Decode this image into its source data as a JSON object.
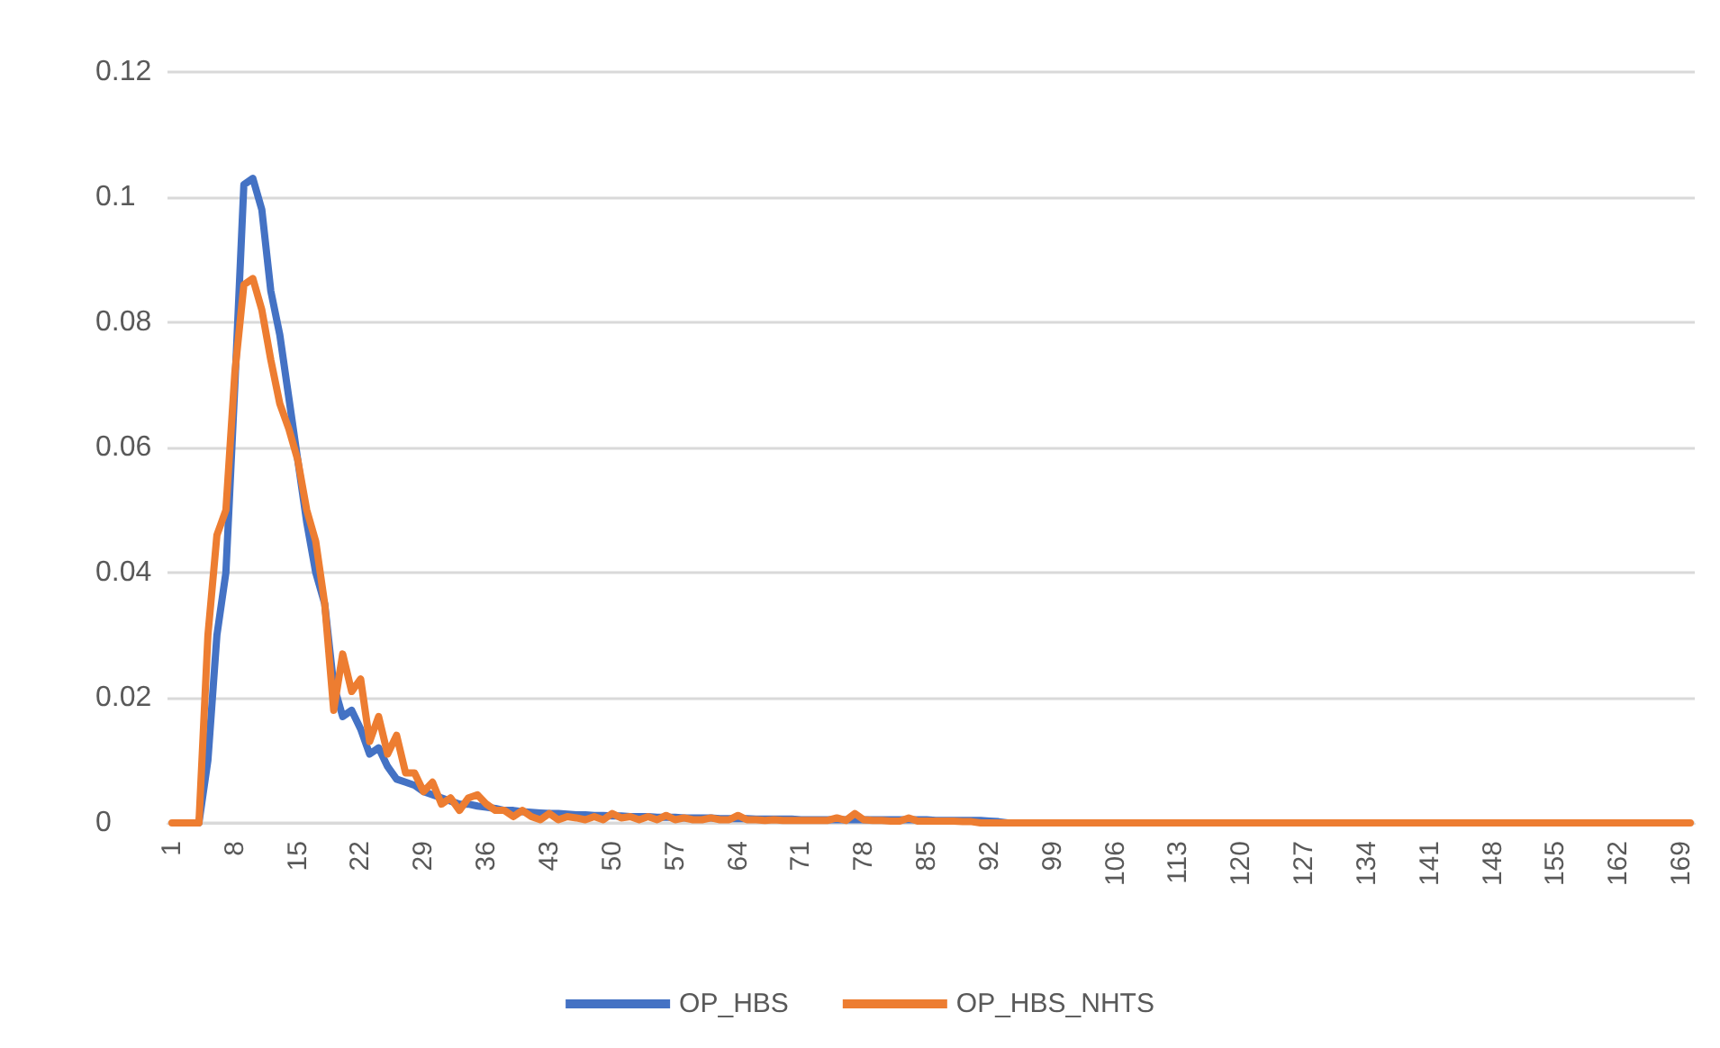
{
  "chart_data": {
    "type": "line",
    "categories": [
      "1",
      null,
      null,
      null,
      null,
      null,
      null,
      "8",
      null,
      null,
      null,
      null,
      null,
      null,
      "15",
      null,
      null,
      null,
      null,
      null,
      null,
      "22",
      null,
      null,
      null,
      null,
      null,
      null,
      "29",
      null,
      null,
      null,
      null,
      null,
      null,
      "36",
      null,
      null,
      null,
      null,
      null,
      null,
      "43",
      null,
      null,
      null,
      null,
      null,
      null,
      "50",
      null,
      null,
      null,
      null,
      null,
      null,
      "57",
      null,
      null,
      null,
      null,
      null,
      null,
      "64",
      null,
      null,
      null,
      null,
      null,
      null,
      "71",
      null,
      null,
      null,
      null,
      null,
      null,
      "78",
      null,
      null,
      null,
      null,
      null,
      null,
      "85",
      null,
      null,
      null,
      null,
      null,
      null,
      "92",
      null,
      null,
      null,
      null,
      null,
      null,
      "99",
      null,
      null,
      null,
      null,
      null,
      null,
      "106",
      null,
      null,
      null,
      null,
      null,
      null,
      "113",
      null,
      null,
      null,
      null,
      null,
      null,
      "120",
      null,
      null,
      null,
      null,
      null,
      null,
      "127",
      null,
      null,
      null,
      null,
      null,
      null,
      "134",
      null,
      null,
      null,
      null,
      null,
      null,
      "141",
      null,
      null,
      null,
      null,
      null,
      null,
      "148",
      null,
      null,
      null,
      null,
      null,
      null,
      "155",
      null,
      null,
      null,
      null,
      null,
      null,
      "162",
      null,
      null,
      null,
      null,
      null,
      null,
      "169",
      null
    ],
    "series": [
      {
        "name": "OP_HBS",
        "color": "#4472c4",
        "values": [
          null,
          null,
          0,
          0,
          0.01,
          0.03,
          0.04,
          0.07,
          0.102,
          0.103,
          0.098,
          0.085,
          0.078,
          0.068,
          0.058,
          0.048,
          0.04,
          0.035,
          0.022,
          0.017,
          0.018,
          0.015,
          0.011,
          0.012,
          0.009,
          0.007,
          0.0065,
          0.006,
          0.005,
          0.0045,
          0.004,
          0.0035,
          0.003,
          0.003,
          0.0027,
          0.0025,
          0.0023,
          0.002,
          0.002,
          0.0018,
          0.0017,
          0.0016,
          0.0015,
          0.0015,
          0.0014,
          0.0013,
          0.0013,
          0.0012,
          0.0012,
          0.0011,
          0.0011,
          0.001,
          0.001,
          0.001,
          0.0009,
          0.0009,
          0.0009,
          0.0008,
          0.0008,
          0.0008,
          0.0008,
          0.0007,
          0.0007,
          0.0007,
          0.0007,
          0.0006,
          0.0006,
          0.0006,
          0.0006,
          0.0006,
          0.0005,
          0.0005,
          0.0005,
          0.0005,
          0.0005,
          0.0005,
          0.0005,
          0.0005,
          0.0005,
          0.0005,
          0.0005,
          0.0005,
          0.0005,
          0.0005,
          0.0005,
          0.0004,
          0.0004,
          0.0004,
          0.0004,
          0.0004,
          0.0004,
          0.0003,
          0.0002,
          0,
          0,
          0,
          null,
          null,
          null,
          null,
          null,
          null,
          null,
          null,
          null,
          null,
          null,
          null,
          null,
          null,
          null,
          null,
          null,
          null,
          null,
          null,
          null,
          null,
          null,
          null,
          null,
          null,
          null,
          null,
          null,
          null,
          null,
          null,
          null,
          null,
          null,
          null,
          null,
          null,
          null,
          null,
          null,
          null,
          null,
          null,
          null,
          null,
          null,
          null,
          null,
          null,
          null,
          null,
          null,
          null,
          null,
          null,
          null,
          null,
          null,
          null,
          null,
          null,
          null,
          null,
          null,
          null,
          null,
          null,
          null,
          null,
          null,
          null,
          null,
          null
        ]
      },
      {
        "name": "OP_HBS_NHTS",
        "color": "#ed7d31",
        "values": [
          0,
          0,
          0,
          0,
          0.03,
          0.046,
          0.05,
          0.072,
          0.086,
          0.087,
          0.082,
          0.074,
          0.067,
          0.063,
          0.058,
          0.05,
          0.045,
          0.035,
          0.018,
          0.027,
          0.021,
          0.023,
          0.013,
          0.017,
          0.011,
          0.014,
          0.008,
          0.008,
          0.005,
          0.0065,
          0.003,
          0.004,
          0.002,
          0.004,
          0.0045,
          0.003,
          0.002,
          0.002,
          0.001,
          0.002,
          0.001,
          0.0005,
          0.0015,
          0.0005,
          0.001,
          0.0008,
          0.0005,
          0.001,
          0.0005,
          0.0015,
          0.0008,
          0.001,
          0.0005,
          0.001,
          0.0005,
          0.0012,
          0.0005,
          0.0008,
          0.0005,
          0.0005,
          0.0008,
          0.0005,
          0.0005,
          0.0012,
          0.0005,
          0.0005,
          0.0004,
          0.0005,
          0.0004,
          0.0004,
          0.0004,
          0.0004,
          0.0004,
          0.0004,
          0.0008,
          0.0004,
          0.0015,
          0.0005,
          0.0004,
          0.0004,
          0.0003,
          0.0003,
          0.0008,
          0.0003,
          0.0003,
          0.0003,
          0.0003,
          0.0003,
          0.0002,
          0.0002,
          0,
          0,
          0,
          0,
          0,
          0,
          0,
          0,
          0,
          0,
          0,
          0,
          0,
          0,
          0,
          0,
          0,
          0,
          0,
          0,
          0,
          0,
          0,
          0,
          0,
          0,
          0,
          0,
          0,
          0,
          0,
          0,
          0,
          0,
          0,
          0,
          0,
          0,
          0,
          0,
          0,
          0,
          0,
          0,
          0,
          0,
          0,
          0,
          0,
          0,
          0,
          0,
          0,
          0,
          0,
          0,
          0,
          0,
          0,
          0,
          0,
          0,
          0,
          0,
          0,
          0,
          0,
          0,
          0,
          0,
          0,
          0,
          0,
          0,
          0,
          0,
          0,
          0,
          0,
          0
        ]
      }
    ],
    "ylim": [
      0,
      0.12
    ],
    "yticks": [
      0,
      0.02,
      0.04,
      0.06,
      0.08,
      0.1,
      0.12
    ],
    "grid": "y",
    "legend": "bottom"
  }
}
